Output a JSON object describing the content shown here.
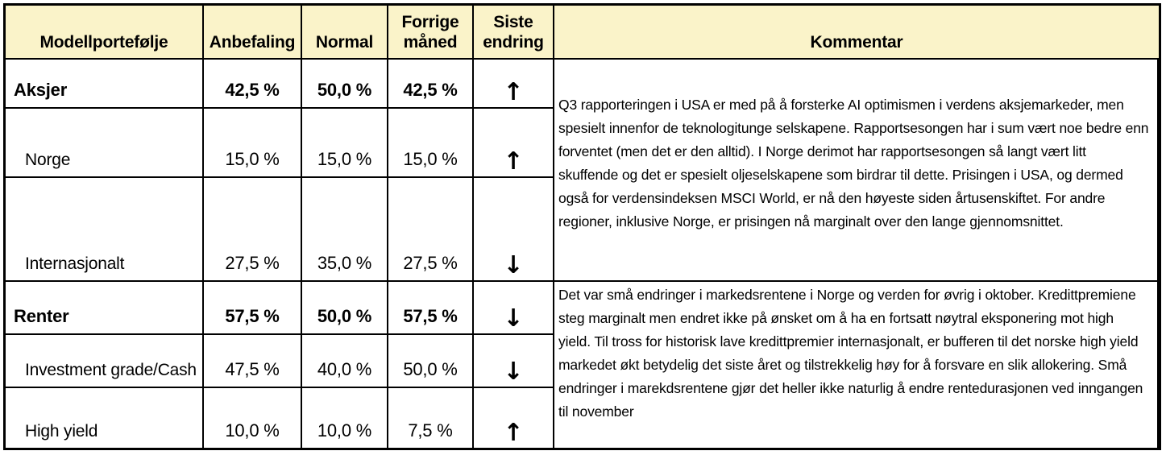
{
  "table": {
    "headers": {
      "portfolio": "Modellportefølje",
      "recommendation": "Anbefaling",
      "normal": "Normal",
      "previous_month": "Forrige måned",
      "last_change": "Siste endring",
      "comment": "Kommentar"
    },
    "rows": [
      {
        "name": "Aksjer",
        "anbefaling": "42,5 %",
        "normal": "50,0 %",
        "forrige_maned": "42,5 %",
        "siste_endring": "↑",
        "direction": "up"
      },
      {
        "name": "Norge",
        "anbefaling": "15,0 %",
        "normal": "15,0 %",
        "forrige_maned": "15,0 %",
        "siste_endring": "↑",
        "direction": "up"
      },
      {
        "name": "Internasjonalt",
        "anbefaling": "27,5 %",
        "normal": "35,0 %",
        "forrige_maned": "27,5 %",
        "siste_endring": "↓",
        "direction": "down"
      },
      {
        "name": "Renter",
        "anbefaling": "57,5 %",
        "normal": "50,0 %",
        "forrige_maned": "57,5 %",
        "siste_endring": "↓",
        "direction": "down"
      },
      {
        "name": "Investment grade/Cash",
        "anbefaling": "47,5 %",
        "normal": "40,0 %",
        "forrige_maned": "50,0 %",
        "siste_endring": "↓",
        "direction": "down"
      },
      {
        "name": "High yield",
        "anbefaling": "10,0 %",
        "normal": "10,0 %",
        "forrige_maned": "7,5 %",
        "siste_endring": "↑",
        "direction": "up"
      }
    ]
  },
  "comments": {
    "aksjer": "Q3 rapporteringen i USA er med på å forsterke AI optimismen i verdens aksjemarkeder, men spesielt innenfor de teknologitunge selskapene. Rapportsesongen har i sum vært noe bedre enn forventet (men det er den alltid). I Norge derimot har rapportsesongen så langt vært litt skuffende og det er spesielt oljeselskapene som birdrar til dette. Prisingen i USA, og dermed også for verdensindeksen MSCI World, er nå den høyeste siden årtusenskiftet. For andre regioner, inklusive Norge, er prisingen nå marginalt over den lange gjennomsnittet.",
    "renter": "Det var små endringer i markedsrentene i Norge og verden for øvrig i oktober. Kredittpremiene steg marginalt men endret ikke på ønsket om å ha en fortsatt nøytral eksponering mot high yield. Til tross for historisk lave kredittpremier internasjonalt, er bufferen til det norske high yield markedet økt betydelig det siste året og tilstrekkelig høy for å forsvare en slik allokering. Små endringer i marekdsrentene gjør det heller ikke naturlig å endre rentedurasjonen ved inngangen til november"
  },
  "colors": {
    "header_bg": "#faf3c9",
    "border": "#000000",
    "text": "#000000",
    "cell_bg": "#ffffff"
  }
}
